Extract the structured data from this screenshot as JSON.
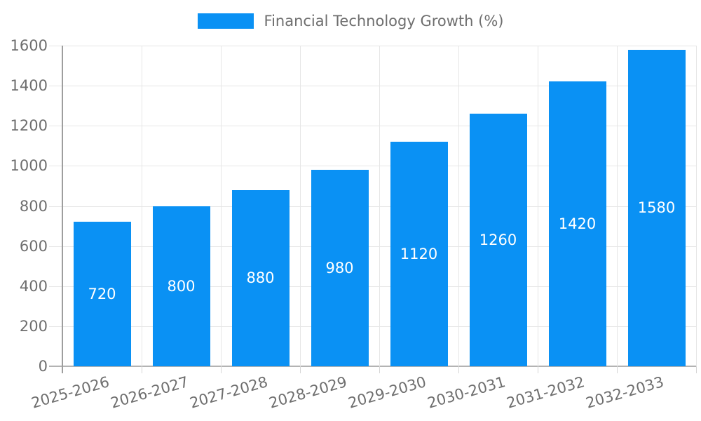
{
  "chart_data": {
    "type": "bar",
    "title": "",
    "legend": "Financial Technology Growth (%)",
    "legend_position": "top-center",
    "categories": [
      "2025-2026",
      "2026-2027",
      "2027-2028",
      "2028-2029",
      "2029-2030",
      "2030-2031",
      "2031-2032",
      "2032-2033"
    ],
    "values": [
      720,
      800,
      880,
      980,
      1120,
      1260,
      1420,
      1580
    ],
    "yticks": [
      0,
      200,
      400,
      600,
      800,
      1000,
      1200,
      1400,
      1600
    ],
    "ylim": [
      0,
      1600
    ],
    "xlabel": "",
    "ylabel": "",
    "grid": true,
    "value_labels": "inside-center",
    "colors": {
      "bar": "#0a91f4",
      "value_label": "#ffffff",
      "axis_text": "#6e6e6e",
      "gridline": "#e6e6e6",
      "axis_line_y": "#9e9e9e",
      "axis_line_x": "#b3b3b3",
      "tick": "#d6d6d6"
    }
  }
}
